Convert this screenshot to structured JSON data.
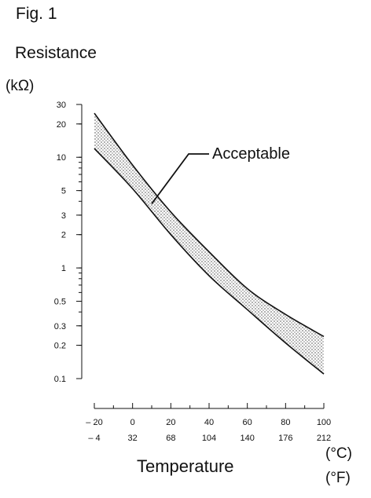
{
  "figure_label": "Fig. 1",
  "colors": {
    "band_fill": "#c9c9c9",
    "line": "#111111"
  },
  "chart_data": {
    "type": "area",
    "title": "",
    "ylabel": "Resistance",
    "yunit": "(kΩ)",
    "xlabel": "Temperature",
    "x_units": [
      "(°C)",
      "(°F)"
    ],
    "y_scale": "log",
    "ylim": [
      0.1,
      30
    ],
    "xlim": [
      -20,
      100
    ],
    "y_ticks": [
      30,
      20,
      10,
      5,
      3,
      2,
      1,
      0.5,
      0.3,
      0.2,
      0.1
    ],
    "y_tick_labels": [
      "30",
      "20",
      "10",
      "5",
      "3",
      "2",
      "1",
      "0.5",
      "0.3",
      "0.2",
      "0.1"
    ],
    "x_ticks": [
      -20,
      0,
      20,
      40,
      60,
      80,
      100
    ],
    "x_tick_labels_c": [
      "– 20",
      "0",
      "20",
      "40",
      "60",
      "80",
      "100"
    ],
    "x_tick_labels_f": [
      "– 4",
      "32",
      "68",
      "104",
      "140",
      "176",
      "212"
    ],
    "series": [
      {
        "x": [
          -20,
          0,
          20,
          40,
          60,
          80,
          100
        ],
        "y": [
          25,
          8.5,
          3.2,
          1.4,
          0.65,
          0.38,
          0.24
        ]
      },
      {
        "x": [
          -20,
          0,
          20,
          40,
          60,
          80,
          100
        ],
        "y": [
          12,
          5.2,
          2.0,
          0.85,
          0.42,
          0.21,
          0.11
        ]
      }
    ],
    "annotation": {
      "text": "Acceptable",
      "x": 10,
      "y": 3.8
    }
  }
}
